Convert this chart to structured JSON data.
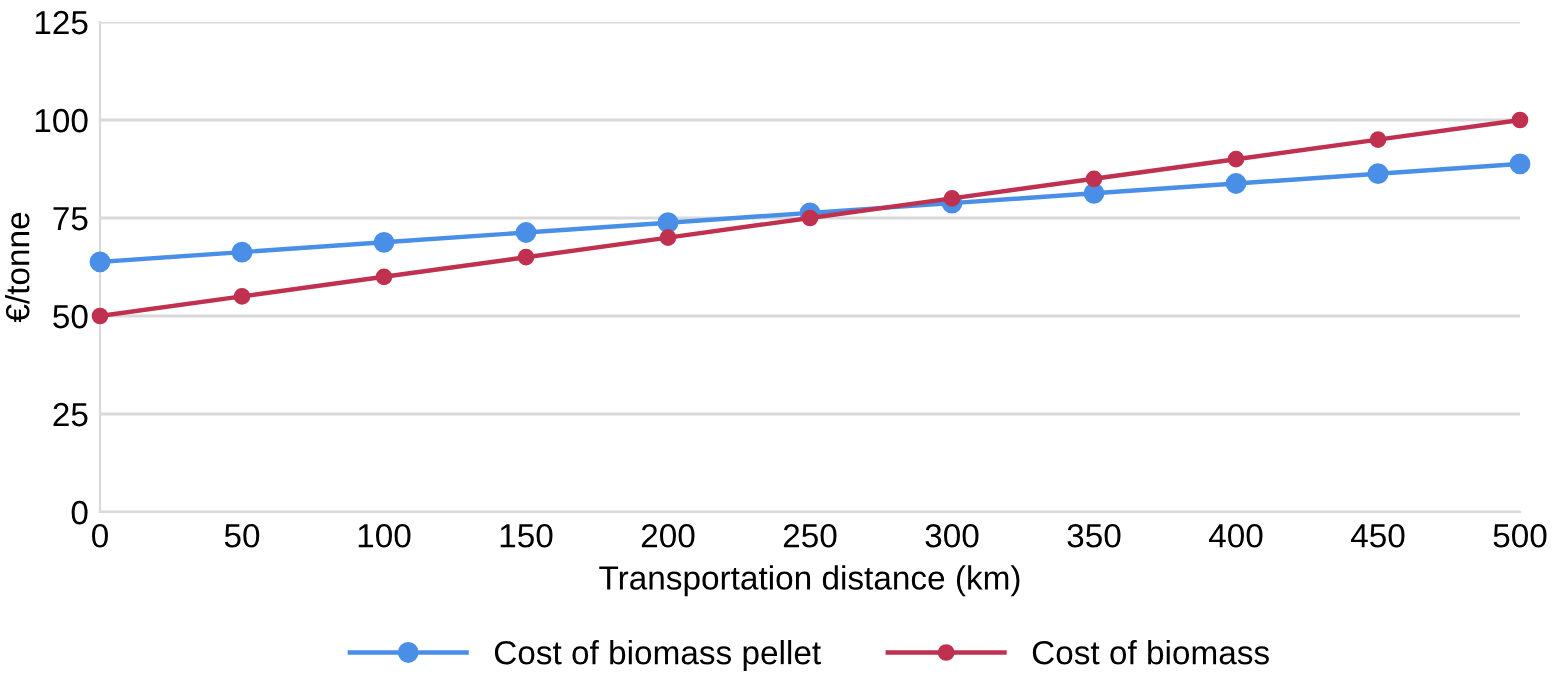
{
  "chart_data": {
    "type": "line",
    "xlabel": "Transportation distance (km)",
    "ylabel": "€/tonne",
    "x": [
      0,
      50,
      100,
      150,
      200,
      250,
      300,
      350,
      400,
      450,
      500
    ],
    "series": [
      {
        "name": "Cost of biomass pellet",
        "color": "#4a8fe7",
        "values": [
          63.8,
          66.3,
          68.8,
          71.3,
          73.8,
          76.3,
          78.8,
          81.3,
          83.8,
          86.3,
          88.8
        ]
      },
      {
        "name": "Cost of biomass",
        "color": "#c0304f",
        "values": [
          50,
          55,
          60,
          65,
          70,
          75,
          80,
          85,
          90,
          95,
          100
        ]
      }
    ],
    "xlim": [
      0,
      500
    ],
    "xticks": [
      0,
      50,
      100,
      150,
      200,
      250,
      300,
      350,
      400,
      450,
      500
    ],
    "ylim": [
      0,
      125
    ],
    "yticks": [
      0,
      25,
      50,
      75,
      100,
      125
    ],
    "grid": "y",
    "legend": "bottom",
    "marker": "circle",
    "line_style": "solid"
  }
}
